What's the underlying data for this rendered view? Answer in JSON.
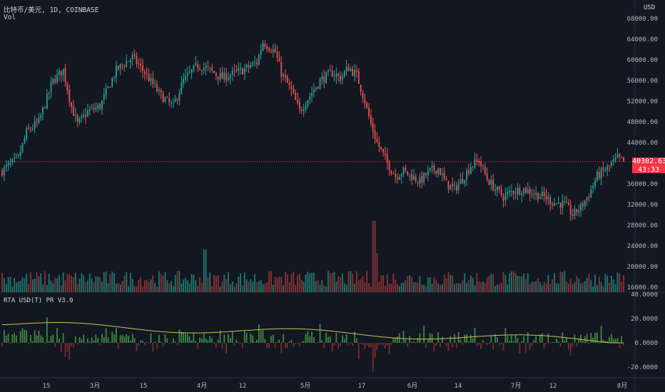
{
  "header": {
    "symbol": "比特币/美元, 1D, COINBASE",
    "volume_label": "Vol"
  },
  "indicator": {
    "label": "RTA USD(T) PR V3.0"
  },
  "price_axis": {
    "currency": "USD",
    "ticks": [
      68000,
      64000,
      60000,
      56000,
      52000,
      48000,
      44000,
      36000,
      32000,
      28000,
      24000,
      20000,
      16000
    ]
  },
  "indicator_axis": {
    "ticks": [
      40,
      20,
      0,
      -20
    ]
  },
  "time_axis": {
    "labels": [
      "15",
      "3月",
      "15",
      "4月",
      "12",
      "5月",
      "17",
      "6月",
      "14",
      "7月",
      "12",
      "8月"
    ]
  },
  "last_price": {
    "value": "40302.63",
    "countdown": "43:33"
  },
  "colors": {
    "background": "#131722",
    "up": "#26a69a",
    "down": "#ef5350",
    "vol_up": "#22786e",
    "vol_down": "#8a3434",
    "ind_up": "#3e8a3f",
    "ind_down": "#7d2c2c",
    "ma": "#c9c34d",
    "last_price": "#f23645"
  },
  "chart_data": {
    "type": "candlestick",
    "ohlc_keypoints": [
      [
        0,
        38500
      ],
      [
        8,
        41000
      ],
      [
        12,
        46000
      ],
      [
        18,
        48000
      ],
      [
        25,
        56000
      ],
      [
        30,
        58000
      ],
      [
        34,
        51000
      ],
      [
        37,
        47500
      ],
      [
        42,
        50000
      ],
      [
        48,
        51000
      ],
      [
        56,
        58000
      ],
      [
        64,
        60500
      ],
      [
        70,
        57500
      ],
      [
        78,
        53000
      ],
      [
        84,
        51000
      ],
      [
        89,
        56000
      ],
      [
        96,
        59000
      ],
      [
        102,
        58000
      ],
      [
        108,
        56500
      ],
      [
        114,
        57500
      ],
      [
        118,
        58000
      ],
      [
        125,
        59500
      ],
      [
        128,
        63500
      ],
      [
        134,
        61500
      ],
      [
        137,
        57500
      ],
      [
        142,
        54000
      ],
      [
        146,
        50000
      ],
      [
        150,
        52500
      ],
      [
        156,
        56000
      ],
      [
        162,
        57500
      ],
      [
        166,
        56500
      ],
      [
        170,
        58500
      ],
      [
        174,
        57000
      ],
      [
        178,
        52000
      ],
      [
        181,
        47500
      ],
      [
        184,
        44000
      ],
      [
        189,
        40000
      ],
      [
        193,
        37500
      ],
      [
        197,
        38500
      ],
      [
        201,
        37500
      ],
      [
        205,
        36500
      ],
      [
        210,
        38500
      ],
      [
        214,
        39000
      ],
      [
        218,
        36000
      ],
      [
        222,
        35000
      ],
      [
        226,
        37000
      ],
      [
        230,
        39500
      ],
      [
        234,
        40500
      ],
      [
        238,
        37000
      ],
      [
        242,
        35000
      ],
      [
        246,
        33500
      ],
      [
        250,
        34500
      ],
      [
        256,
        35000
      ],
      [
        262,
        34000
      ],
      [
        266,
        33500
      ],
      [
        270,
        32500
      ],
      [
        276,
        32000
      ],
      [
        280,
        30000
      ],
      [
        284,
        31500
      ],
      [
        288,
        34000
      ],
      [
        292,
        37500
      ],
      [
        297,
        39000
      ],
      [
        302,
        41000
      ],
      [
        305,
        40300
      ]
    ],
    "volume_range": [
      16000,
      24000
    ],
    "indicator_range": [
      -25,
      40
    ]
  }
}
